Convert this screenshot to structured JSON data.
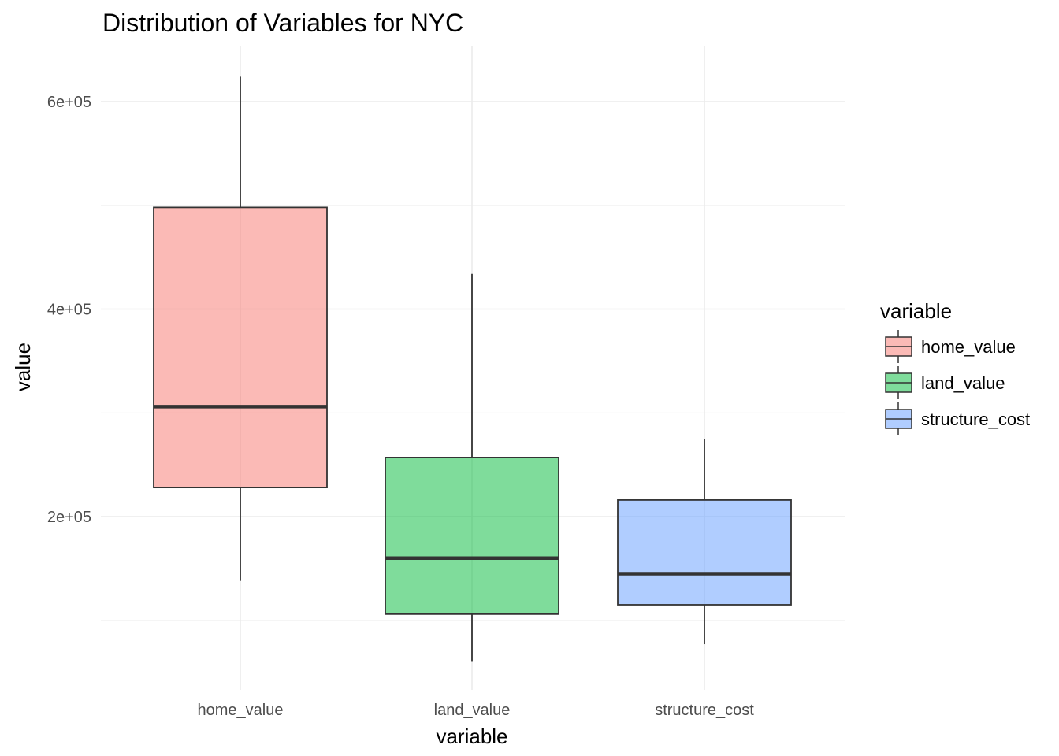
{
  "chart_data": {
    "type": "boxplot",
    "title": "Distribution of Variables for NYC",
    "xlabel": "variable",
    "ylabel": "value",
    "categories": [
      "home_value",
      "land_value",
      "structure_cost"
    ],
    "y_ticks": [
      200000,
      400000,
      600000
    ],
    "y_tick_labels": [
      "2e+05",
      "4e+05",
      "6e+05"
    ],
    "ylim": [
      50000,
      650000
    ],
    "grid": true,
    "legend": {
      "title": "variable",
      "position": "right",
      "entries": [
        "home_value",
        "land_value",
        "structure_cost"
      ]
    },
    "series": [
      {
        "category": "home_value",
        "color": "#F8766D",
        "whisker_low": 138000,
        "q1": 228000,
        "median": 306000,
        "q3": 498000,
        "whisker_high": 624000
      },
      {
        "category": "land_value",
        "color": "#00BA38",
        "whisker_low": 60000,
        "q1": 106000,
        "median": 160000,
        "q3": 257000,
        "whisker_high": 434000
      },
      {
        "category": "structure_cost",
        "color": "#619CFF",
        "whisker_low": 77000,
        "q1": 115000,
        "median": 145000,
        "q3": 216000,
        "whisker_high": 275000
      }
    ]
  }
}
